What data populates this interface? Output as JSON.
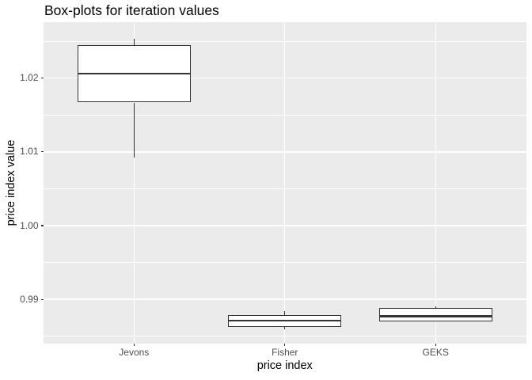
{
  "chart_data": {
    "type": "boxplot",
    "title": "Box-plots for iteration values",
    "xlabel": "price index",
    "ylabel": "price index value",
    "categories": [
      "Jevons",
      "Fisher",
      "GEKS"
    ],
    "series": [
      {
        "name": "Jevons",
        "min": 1.0092,
        "q1": 1.0167,
        "median": 1.0206,
        "q3": 1.0245,
        "max": 1.0253
      },
      {
        "name": "Fisher",
        "min": 0.9859,
        "q1": 0.9863,
        "median": 0.9871,
        "q3": 0.9879,
        "max": 0.9884
      },
      {
        "name": "GEKS",
        "min": 0.987,
        "q1": 0.987,
        "median": 0.9877,
        "q3": 0.9888,
        "max": 0.989
      }
    ],
    "y_axis": {
      "ticks": [
        {
          "value": 0.99,
          "label": "0.99"
        },
        {
          "value": 1.0,
          "label": "1.00"
        },
        {
          "value": 1.01,
          "label": "1.01"
        },
        {
          "value": 1.02,
          "label": "1.02"
        }
      ],
      "minor": [
        0.985,
        0.995,
        1.005,
        1.015,
        1.025
      ],
      "ylim": [
        0.984,
        1.0276
      ]
    },
    "legend": false,
    "grid": true,
    "colors": {
      "background": "#FFFFFF",
      "panel_bg": "#EBEBEB",
      "gridline": "#FFFFFF",
      "box_fill": "#FFFFFF",
      "box_border": "#333333",
      "median": "#333333",
      "whisker": "#333333",
      "tick_mark": "#333333",
      "axis_text": "#4D4D4D",
      "axis_title": "#000000",
      "title": "#000000"
    }
  }
}
